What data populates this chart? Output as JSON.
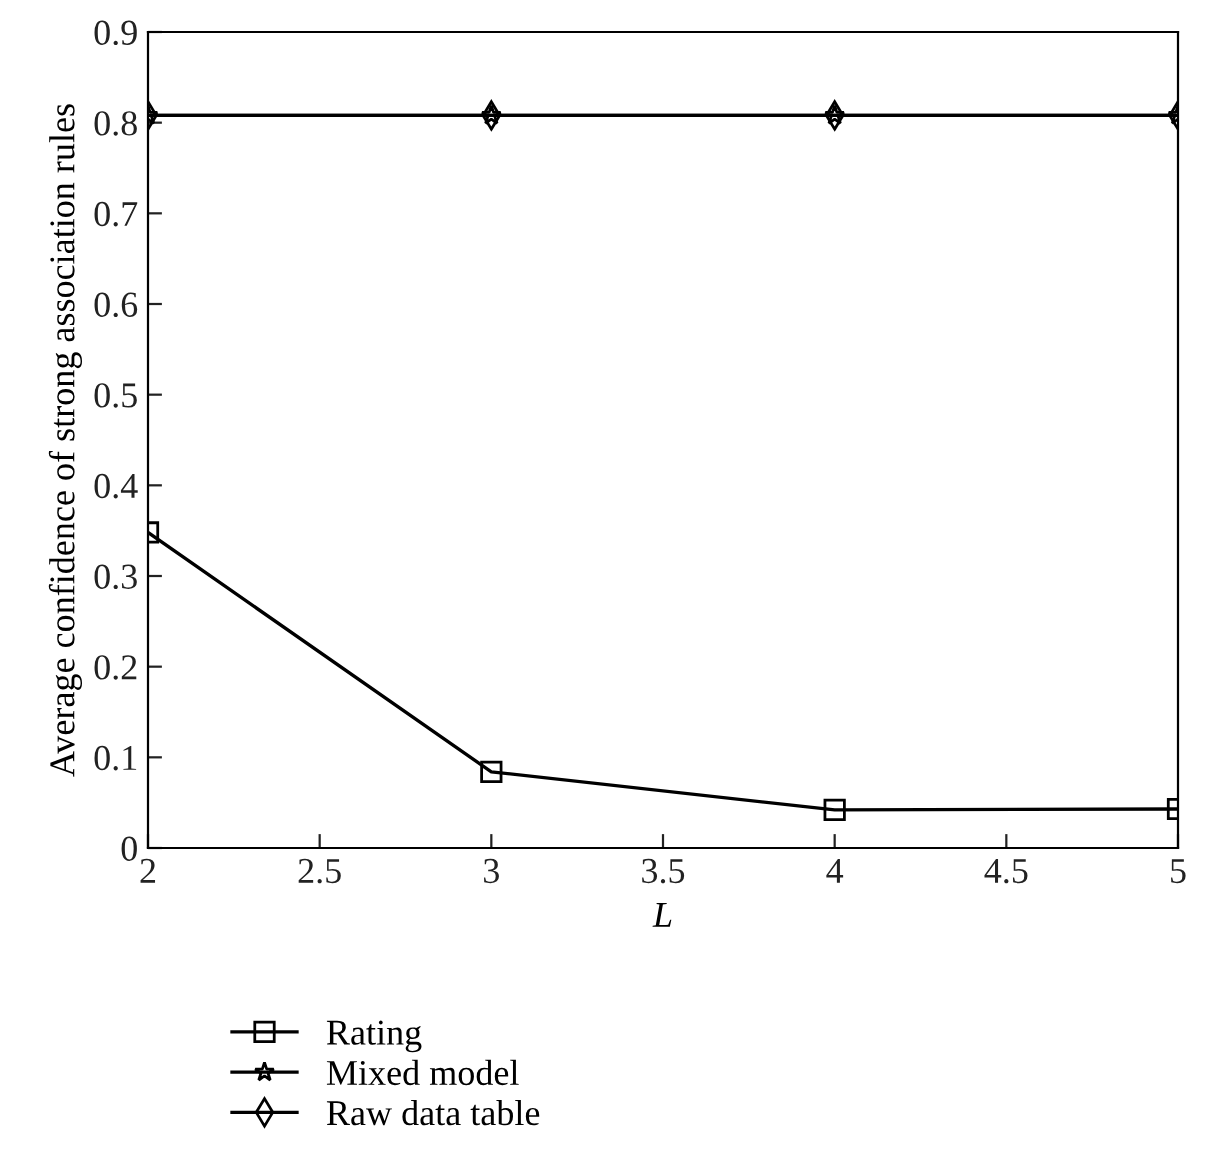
{
  "chart_data": {
    "type": "line",
    "xlabel": "L",
    "ylabel": "Average confidence of strong association rules",
    "x": [
      2,
      3,
      4,
      5
    ],
    "series": [
      {
        "name": "Rating",
        "color": "#000000",
        "marker": "square",
        "values": [
          0.348,
          0.084,
          0.042,
          0.043
        ]
      },
      {
        "name": "Mixed model",
        "color": "#000000",
        "marker": "star",
        "values": [
          0.808,
          0.808,
          0.808,
          0.808
        ]
      },
      {
        "name": "Raw data table",
        "color": "#000000",
        "marker": "diamond",
        "values": [
          0.808,
          0.808,
          0.808,
          0.808
        ]
      }
    ],
    "xlim": [
      2,
      5
    ],
    "xticks": [
      2,
      2.5,
      3,
      3.5,
      4,
      4.5,
      5
    ],
    "ylim": [
      0,
      0.9
    ],
    "yticks": [
      0,
      0.1,
      0.2,
      0.3,
      0.4,
      0.5,
      0.6,
      0.7,
      0.8,
      0.9
    ],
    "grid": false,
    "legend": "bottom",
    "line_style": "solid"
  }
}
